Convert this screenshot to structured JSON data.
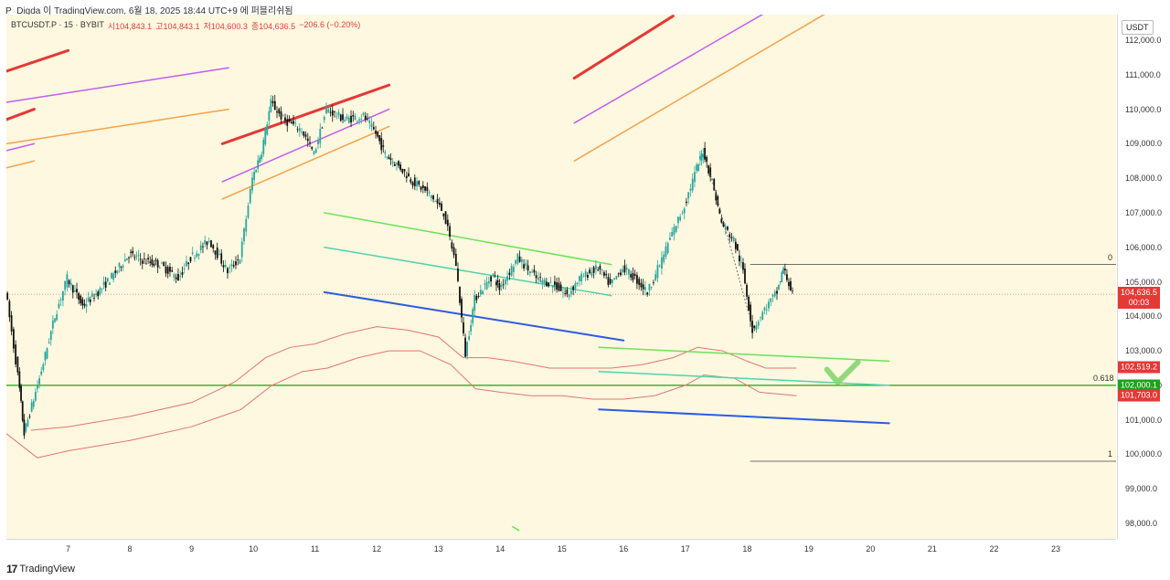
{
  "caption": "P_Digda 이 TradingView.com, 6월 18, 2025 18:44 UTC+9 에 퍼블리쉬됨",
  "legend": {
    "symbol": "BTCUSDT.P · 15 · BYBIT",
    "open": "시104,843.1",
    "high": "고104,843.1",
    "low": "저104,600.3",
    "close": "종104,636.5",
    "change": "−206.6 (−0.20%)"
  },
  "unit": "USDT",
  "footer": {
    "logo": "17",
    "brand": "TradingView"
  },
  "colors": {
    "bg": "#fdf8df",
    "up": "#2aa6a0",
    "down": "#111111",
    "red_line": "#e53935",
    "violet_line": "#c35cf2",
    "orange_line": "#f7a14a",
    "green_line": "#6ee05a",
    "teal_line": "#4fd3b0",
    "blue_line": "#2d5be3",
    "fib_line": "#1aa31a"
  },
  "price_badges": [
    {
      "price": "104,636.5",
      "sub": "00:03",
      "color": "#e53935"
    },
    {
      "price": "102,519.2",
      "sub": "",
      "color": "#e53935"
    },
    {
      "price": "102,000.1",
      "sub": "",
      "color": "#1aa31a"
    },
    {
      "price": "101,703.0",
      "sub": "",
      "color": "#e53935"
    }
  ],
  "fib_levels": [
    {
      "label": "0",
      "price": 105500
    },
    {
      "label": "0.618",
      "price": 102000
    },
    {
      "label": "1",
      "price": 99800
    }
  ],
  "chart_data": {
    "type": "candlestick",
    "title": "BTCUSDT.P · 15 · BYBIT",
    "xlabel": "",
    "ylabel": "",
    "ylim": [
      97700,
      112300
    ],
    "xlim": [
      6.0,
      24.0
    ],
    "grid": false,
    "price_ticks": [
      "112,000.0",
      "111,000.0",
      "110,000.0",
      "109,000.0",
      "108,000.0",
      "107,000.0",
      "106,000.0",
      "105,000.0",
      "104,000.0",
      "103,000.0",
      "102,000.0",
      "101,000.0",
      "100,000.0",
      "99,000.0",
      "98,000.0"
    ],
    "price_tick_values": [
      112000,
      111000,
      110000,
      109000,
      108000,
      107000,
      106000,
      105000,
      104000,
      103000,
      102000,
      101000,
      100000,
      99000,
      98000
    ],
    "date_ticks": [
      "7",
      "8",
      "9",
      "10",
      "11",
      "12",
      "13",
      "14",
      "15",
      "16",
      "17",
      "18",
      "19",
      "20",
      "21",
      "22",
      "23"
    ],
    "date_tick_values": [
      7,
      8,
      9,
      10,
      11,
      12,
      13,
      14,
      15,
      16,
      17,
      18,
      19,
      20,
      21,
      22,
      23
    ],
    "price_path": [
      [
        6.0,
        104800
      ],
      [
        6.2,
        102300
      ],
      [
        6.3,
        100600
      ],
      [
        6.55,
        102200
      ],
      [
        6.8,
        104000
      ],
      [
        7.0,
        105100
      ],
      [
        7.25,
        104300
      ],
      [
        7.5,
        104700
      ],
      [
        7.75,
        105200
      ],
      [
        8.0,
        105800
      ],
      [
        8.25,
        105600
      ],
      [
        8.5,
        105500
      ],
      [
        8.8,
        105100
      ],
      [
        9.0,
        105700
      ],
      [
        9.3,
        106200
      ],
      [
        9.6,
        105300
      ],
      [
        9.8,
        105700
      ],
      [
        10.0,
        108000
      ],
      [
        10.15,
        108800
      ],
      [
        10.3,
        110200
      ],
      [
        10.5,
        109700
      ],
      [
        10.8,
        109400
      ],
      [
        11.0,
        108700
      ],
      [
        11.2,
        110000
      ],
      [
        11.5,
        109700
      ],
      [
        11.8,
        109800
      ],
      [
        12.0,
        109300
      ],
      [
        12.15,
        108700
      ],
      [
        12.4,
        108300
      ],
      [
        12.6,
        107900
      ],
      [
        12.9,
        107500
      ],
      [
        13.1,
        107000
      ],
      [
        13.3,
        105500
      ],
      [
        13.45,
        102900
      ],
      [
        13.6,
        104500
      ],
      [
        13.9,
        105200
      ],
      [
        14.0,
        104800
      ],
      [
        14.3,
        105700
      ],
      [
        14.6,
        105100
      ],
      [
        14.9,
        104900
      ],
      [
        15.1,
        104600
      ],
      [
        15.3,
        105100
      ],
      [
        15.6,
        105400
      ],
      [
        15.8,
        104900
      ],
      [
        16.0,
        105400
      ],
      [
        16.2,
        105100
      ],
      [
        16.4,
        104700
      ],
      [
        16.6,
        105500
      ],
      [
        16.8,
        106400
      ],
      [
        17.0,
        107200
      ],
      [
        17.2,
        108300
      ],
      [
        17.3,
        108800
      ],
      [
        17.45,
        107900
      ],
      [
        17.6,
        106700
      ],
      [
        17.8,
        106200
      ],
      [
        17.95,
        105300
      ],
      [
        18.1,
        103600
      ],
      [
        18.3,
        104200
      ],
      [
        18.5,
        104700
      ],
      [
        18.6,
        105400
      ],
      [
        18.75,
        104640
      ]
    ],
    "trendlines": [
      {
        "name": "red",
        "color": "#e53935",
        "width": 3,
        "segments": [
          [
            [
              6.0,
              111100
            ],
            [
              7.0,
              111700
            ]
          ],
          [
            [
              6.0,
              109700
            ],
            [
              6.45,
              110000
            ]
          ],
          [
            [
              9.5,
              109000
            ],
            [
              12.2,
              110700
            ]
          ],
          [
            [
              15.2,
              110900
            ],
            [
              16.8,
              112700
            ]
          ]
        ]
      },
      {
        "name": "violet",
        "color": "#c35cf2",
        "width": 1.5,
        "segments": [
          [
            [
              6.0,
              110200
            ],
            [
              9.6,
              111200
            ]
          ],
          [
            [
              6.0,
              108800
            ],
            [
              6.45,
              109000
            ]
          ],
          [
            [
              9.5,
              107900
            ],
            [
              12.2,
              110000
            ]
          ],
          [
            [
              15.2,
              109600
            ],
            [
              18.3,
              112800
            ]
          ]
        ]
      },
      {
        "name": "orange",
        "color": "#f7a14a",
        "width": 1.5,
        "segments": [
          [
            [
              6.0,
              109000
            ],
            [
              9.6,
              110000
            ]
          ],
          [
            [
              6.0,
              108300
            ],
            [
              6.45,
              108500
            ]
          ],
          [
            [
              9.5,
              107400
            ],
            [
              12.2,
              109500
            ]
          ],
          [
            [
              15.2,
              108500
            ],
            [
              19.3,
              112800
            ]
          ]
        ]
      },
      {
        "name": "green",
        "color": "#6ee05a",
        "width": 1.5,
        "segments": [
          [
            [
              11.15,
              107000
            ],
            [
              15.8,
              105500
            ]
          ],
          [
            [
              15.6,
              103100
            ],
            [
              20.3,
              102700
            ]
          ],
          [
            [
              14.2,
              97900
            ],
            [
              14.3,
              97800
            ]
          ]
        ]
      },
      {
        "name": "teal",
        "color": "#4fd3b0",
        "width": 1.5,
        "segments": [
          [
            [
              11.15,
              106000
            ],
            [
              15.8,
              104600
            ]
          ],
          [
            [
              15.6,
              102400
            ],
            [
              20.3,
              102000
            ]
          ]
        ]
      },
      {
        "name": "blue",
        "color": "#2d5be3",
        "width": 2,
        "segments": [
          [
            [
              11.15,
              104700
            ],
            [
              16.0,
              103300
            ]
          ],
          [
            [
              15.6,
              101300
            ],
            [
              20.3,
              100900
            ]
          ]
        ]
      }
    ],
    "bands": [
      {
        "name": "upper",
        "color": "#e57373",
        "points": [
          [
            6.4,
            100700
          ],
          [
            7.0,
            100800
          ],
          [
            8.0,
            101100
          ],
          [
            9.0,
            101500
          ],
          [
            9.7,
            102100
          ],
          [
            10.2,
            102800
          ],
          [
            10.6,
            103100
          ],
          [
            11.0,
            103200
          ],
          [
            11.5,
            103500
          ],
          [
            12.0,
            103700
          ],
          [
            12.5,
            103600
          ],
          [
            13.0,
            103400
          ],
          [
            13.4,
            102800
          ],
          [
            13.8,
            102800
          ],
          [
            14.2,
            102700
          ],
          [
            14.8,
            102500
          ],
          [
            15.3,
            102500
          ],
          [
            15.8,
            102500
          ],
          [
            16.3,
            102600
          ],
          [
            16.8,
            102800
          ],
          [
            17.2,
            103100
          ],
          [
            17.6,
            103000
          ],
          [
            18.0,
            102700
          ],
          [
            18.3,
            102500
          ],
          [
            18.8,
            102500
          ]
        ]
      },
      {
        "name": "lower",
        "color": "#e57373",
        "points": [
          [
            6.0,
            100600
          ],
          [
            6.5,
            99900
          ],
          [
            7.0,
            100100
          ],
          [
            8.0,
            100400
          ],
          [
            9.0,
            100800
          ],
          [
            9.8,
            101300
          ],
          [
            10.3,
            102000
          ],
          [
            10.8,
            102400
          ],
          [
            11.2,
            102500
          ],
          [
            11.7,
            102800
          ],
          [
            12.2,
            103000
          ],
          [
            12.7,
            103000
          ],
          [
            13.2,
            102600
          ],
          [
            13.6,
            101900
          ],
          [
            14.0,
            101800
          ],
          [
            14.5,
            101700
          ],
          [
            15.0,
            101700
          ],
          [
            15.5,
            101600
          ],
          [
            16.0,
            101600
          ],
          [
            16.5,
            101700
          ],
          [
            17.0,
            102000
          ],
          [
            17.3,
            102300
          ],
          [
            17.8,
            102200
          ],
          [
            18.2,
            101800
          ],
          [
            18.8,
            101700
          ]
        ]
      }
    ],
    "annotations": [
      {
        "type": "checkmark",
        "x": 19.5,
        "y": 102300,
        "color": "#7fd26a"
      },
      {
        "type": "dotted_projection",
        "from": [
          17.3,
          108800
        ],
        "to": [
          18.1,
          103600
        ]
      },
      {
        "type": "fib_range",
        "x_start": 18.05,
        "high": 105500,
        "low": 99800
      }
    ]
  }
}
